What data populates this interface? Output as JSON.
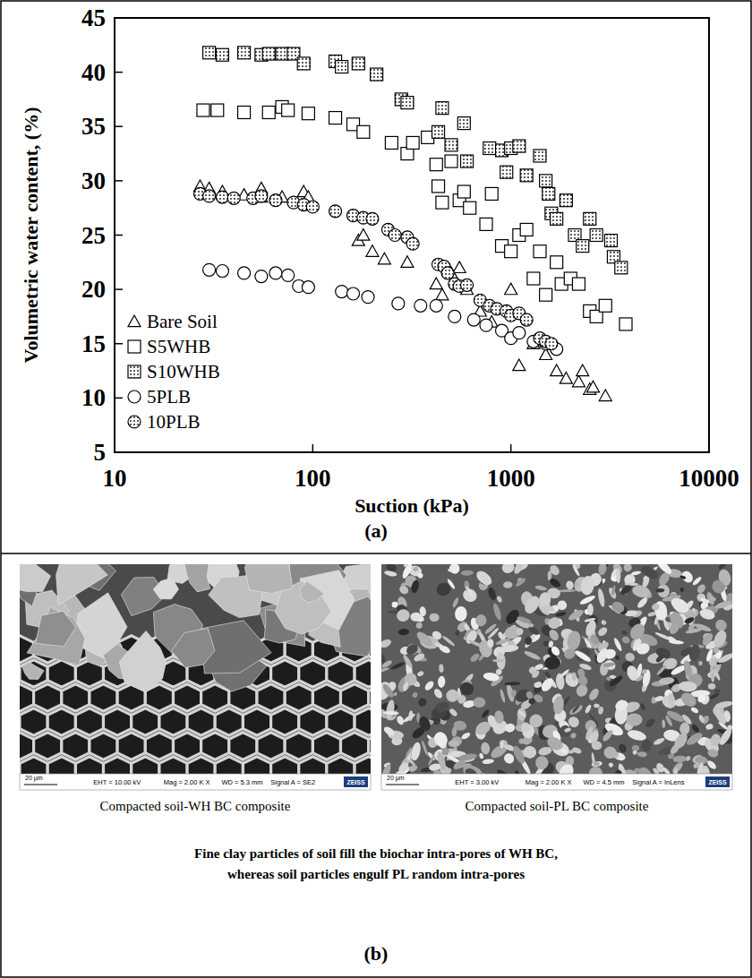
{
  "chart_data": {
    "type": "scatter",
    "xlabel": "Suction (kPa)",
    "ylabel": "Volumetric water content, (%)",
    "log": "x",
    "xlim": [
      10,
      10000
    ],
    "xticks": [
      10,
      100,
      1000,
      10000
    ],
    "ylim": [
      5,
      45
    ],
    "yticks": [
      5,
      10,
      15,
      20,
      25,
      30,
      35,
      40,
      45
    ],
    "grid": false,
    "legend": "lower left",
    "series": [
      {
        "name": "Bare Soil",
        "color": "#000000",
        "marker": "triangle",
        "x": [
          27,
          30,
          35,
          45,
          55,
          55,
          70,
          90,
          95,
          170,
          180,
          200,
          230,
          300,
          420,
          450,
          500,
          550,
          600,
          700,
          800,
          1000,
          1100,
          1300,
          1500,
          1700,
          1900,
          2200,
          2300,
          2500,
          2600,
          3000
        ],
        "values": [
          29.5,
          29.3,
          29,
          28.7,
          28.5,
          29.3,
          28.5,
          29,
          28.5,
          24.5,
          25,
          23.5,
          22.8,
          22.5,
          20.5,
          19.5,
          21.5,
          22,
          20,
          18,
          17,
          20,
          13,
          15,
          14,
          12.5,
          11.8,
          11.5,
          12.5,
          10.8,
          11,
          10.2
        ]
      },
      {
        "name": "S5WHB",
        "color": "#000000",
        "marker": "square",
        "x": [
          28,
          33,
          45,
          60,
          70,
          75,
          95,
          130,
          160,
          180,
          250,
          300,
          320,
          380,
          420,
          430,
          450,
          500,
          550,
          580,
          620,
          750,
          800,
          900,
          1000,
          1100,
          1200,
          1300,
          1400,
          1500,
          1700,
          1800,
          2000,
          2200,
          2500,
          2700,
          3000,
          3800
        ],
        "values": [
          36.5,
          36.5,
          36.3,
          36.3,
          36.8,
          36.5,
          36.2,
          35.8,
          35.2,
          34.5,
          33.5,
          32.5,
          33.5,
          34,
          31.5,
          29.5,
          28,
          31.8,
          28.2,
          29,
          27.5,
          26,
          28.8,
          24,
          23.5,
          25,
          25.5,
          21,
          23.5,
          19.5,
          22.5,
          20.5,
          21,
          20.5,
          18,
          17.5,
          18.5,
          16.8
        ]
      },
      {
        "name": "S10WHB",
        "color": "#000000",
        "marker": "dotted-square",
        "x": [
          30,
          35,
          45,
          55,
          60,
          70,
          80,
          90,
          130,
          140,
          170,
          210,
          280,
          300,
          430,
          450,
          500,
          580,
          600,
          780,
          900,
          950,
          1000,
          1100,
          1200,
          1400,
          1500,
          1550,
          1600,
          1700,
          1900,
          2100,
          2300,
          2500,
          2700,
          3200,
          3300,
          3600
        ],
        "values": [
          41.8,
          41.6,
          41.8,
          41.6,
          41.7,
          41.7,
          41.7,
          40.8,
          41,
          40.5,
          40.8,
          39.8,
          37.5,
          37.2,
          34.5,
          36.7,
          33.3,
          35.3,
          31.8,
          33,
          32.8,
          30.8,
          33,
          33.2,
          30.5,
          32.3,
          30,
          28.8,
          27,
          26.5,
          28.2,
          25,
          24,
          26.5,
          25,
          24.5,
          23,
          22
        ]
      },
      {
        "name": "5PLB",
        "color": "#000000",
        "marker": "circle",
        "x": [
          30,
          35,
          45,
          55,
          65,
          75,
          85,
          95,
          140,
          160,
          190,
          270,
          350,
          420,
          520,
          650,
          750,
          900,
          1000,
          1100,
          1300,
          1500,
          1700
        ],
        "values": [
          21.8,
          21.7,
          21.5,
          21.2,
          21.5,
          21.3,
          20.3,
          20.2,
          19.8,
          19.6,
          19.3,
          18.7,
          18.5,
          18.5,
          17.5,
          17.2,
          16.7,
          16.2,
          15.5,
          16,
          15.2,
          15,
          14.5
        ]
      },
      {
        "name": "10PLB",
        "color": "#000000",
        "marker": "dotted-circle",
        "x": [
          27,
          30,
          35,
          40,
          50,
          55,
          65,
          80,
          90,
          100,
          130,
          160,
          180,
          200,
          240,
          260,
          300,
          320,
          430,
          460,
          480,
          520,
          550,
          600,
          700,
          780,
          850,
          950,
          1000,
          1100,
          1200,
          1400,
          1500,
          1600
        ],
        "values": [
          28.8,
          28.6,
          28.5,
          28.4,
          28.4,
          28.6,
          28.2,
          28,
          27.8,
          27.6,
          27.2,
          26.8,
          26.6,
          26.5,
          25.5,
          25,
          24.8,
          24.2,
          22.3,
          22.1,
          21.5,
          20.5,
          20.3,
          20.4,
          19,
          18.5,
          18.2,
          18,
          17.6,
          17.8,
          17.2,
          15.5,
          15.2,
          15
        ]
      }
    ]
  },
  "panel_a_label": "(a)",
  "panel_b": {
    "label": "(b)",
    "images": [
      {
        "caption": "Compacted soil-WH BC composite",
        "scale_bar": "20 µm",
        "info": [
          "EHT = 10.00 kV",
          "Mag = 2.00 K X",
          "WD = 5.3 mm",
          "Signal A = SE2"
        ],
        "brand": "ZEISS"
      },
      {
        "caption": "Compacted soil-PL BC composite",
        "scale_bar": "20 µm",
        "info": [
          "EHT = 3.00 kV",
          "Mag = 2.00 K X",
          "WD = 4.5 mm",
          "Signal A = InLens"
        ],
        "brand": "ZEISS"
      }
    ],
    "note_lines": [
      "Fine clay particles of soil fill the biochar intra-pores of WH BC,",
      "whereas soil particles engulf PL random intra-pores"
    ]
  }
}
